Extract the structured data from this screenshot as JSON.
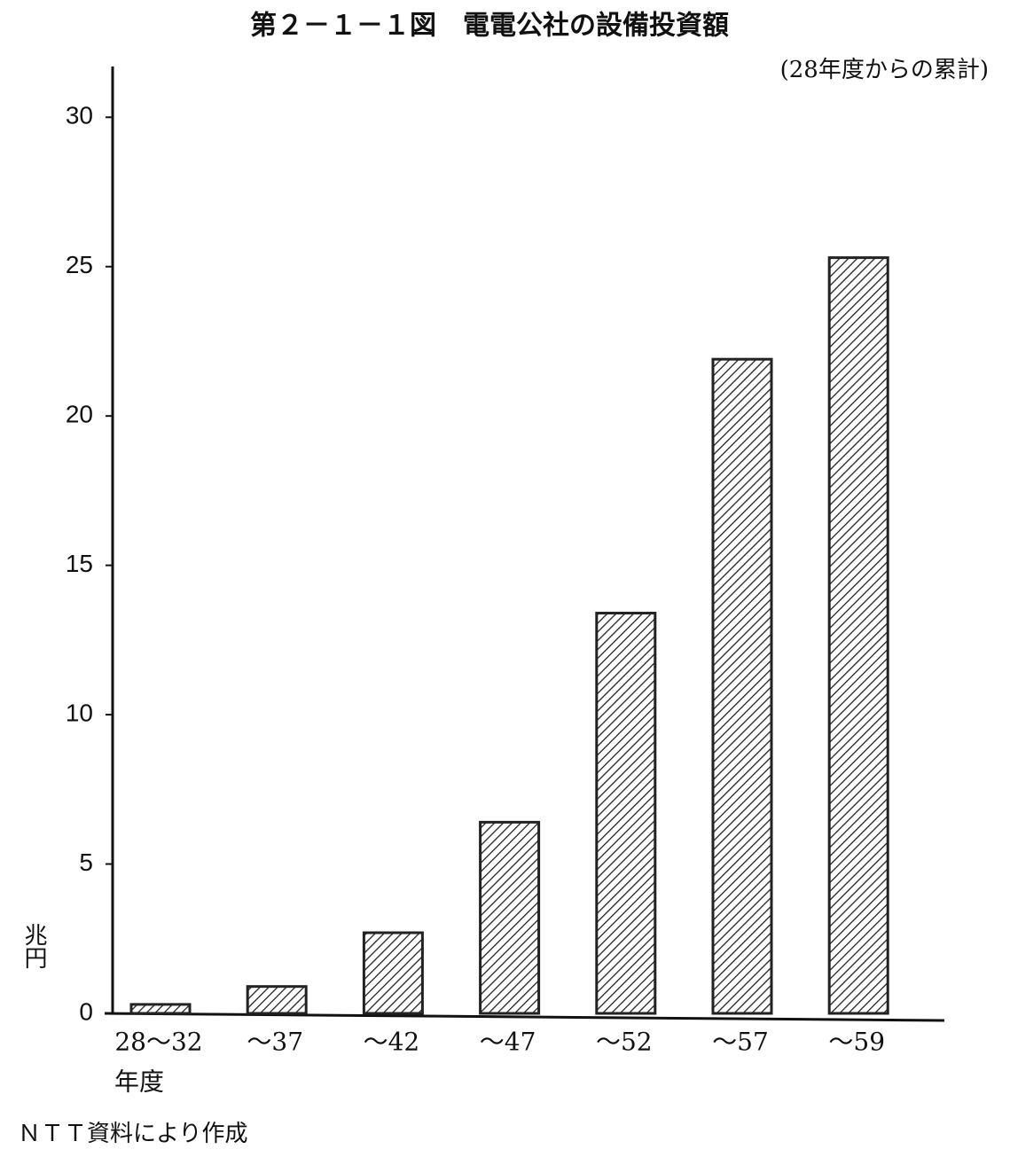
{
  "chart_data": {
    "type": "bar",
    "title": "第２－１－１図　電電公社の設備投資額",
    "subtitle": "(28年度からの累計)",
    "y_label": "兆円",
    "x_label": "年度",
    "source": "ＮＴＴ資料により作成",
    "categories": [
      "28～32",
      "～37",
      "～42",
      "～47",
      "～52",
      "～57",
      "～59"
    ],
    "values": [
      0.3,
      0.9,
      2.7,
      6.4,
      13.4,
      21.9,
      25.3
    ],
    "ylim": [
      0,
      31.7
    ],
    "yticks": [
      0,
      5,
      10,
      15,
      20,
      25,
      30
    ],
    "color": "#222222",
    "grid": false
  }
}
